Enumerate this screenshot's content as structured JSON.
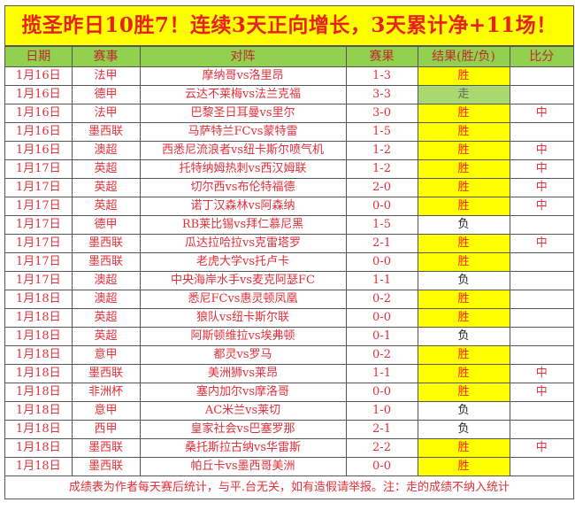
{
  "title": "揽圣昨日10胜7！连续3天正向增长，3天累计净+11场！",
  "headers": [
    "日期",
    "赛事",
    "对阵",
    "赛果",
    "结果(胜/负)",
    "比分"
  ],
  "rows": [
    [
      "1月16日",
      "法甲",
      "摩纳哥vs洛里昂",
      "1-3",
      "胜",
      ""
    ],
    [
      "1月16日",
      "德甲",
      "云达不莱梅vs法兰克福",
      "3-3",
      "走",
      ""
    ],
    [
      "1月16日",
      "法甲",
      "巴黎圣日耳曼vs里尔",
      "3-0",
      "胜",
      "中"
    ],
    [
      "1月16日",
      "墨西联",
      "马萨特兰FCvs蒙特雷",
      "1-5",
      "胜",
      ""
    ],
    [
      "1月16日",
      "澳超",
      "西悉尼流浪者vs纽卡斯尔喷气机",
      "1-2",
      "胜",
      "中"
    ],
    [
      "1月17日",
      "英超",
      "托特纳姆热刺vs西汉姆联",
      "1-2",
      "胜",
      "中"
    ],
    [
      "1月17日",
      "英超",
      "切尔西vs布伦特福德",
      "2-0",
      "胜",
      "中"
    ],
    [
      "1月17日",
      "英超",
      "诺丁汉森林vs阿森纳",
      "0-0",
      "胜",
      "中"
    ],
    [
      "1月17日",
      "德甲",
      "RB莱比锡vs拜仁慕尼黑",
      "1-5",
      "负",
      ""
    ],
    [
      "1月17日",
      "墨西联",
      "瓜达拉哈拉vs克雷塔罗",
      "2-1",
      "胜",
      "中"
    ],
    [
      "1月17日",
      "墨西联",
      "老虎大学vs托卢卡",
      "0-0",
      "胜",
      ""
    ],
    [
      "1月17日",
      "澳超",
      "中央海岸水手vs麦克阿瑟FC",
      "1-1",
      "负",
      ""
    ],
    [
      "1月18日",
      "澳超",
      "悉尼FCvs惠灵顿凤凰",
      "0-2",
      "胜",
      ""
    ],
    [
      "1月18日",
      "英超",
      "狼队vs纽卡斯尔联",
      "0-0",
      "胜",
      ""
    ],
    [
      "1月18日",
      "英超",
      "阿斯顿维拉vs埃弗顿",
      "0-1",
      "负",
      ""
    ],
    [
      "1月18日",
      "意甲",
      "都灵vs罗马",
      "0-2",
      "胜",
      ""
    ],
    [
      "1月18日",
      "墨西联",
      "美洲狮vs莱昂",
      "1-1",
      "胜",
      "中"
    ],
    [
      "1月18日",
      "非洲杯",
      "塞内加尔vs摩洛哥",
      "0-0",
      "胜",
      "中"
    ],
    [
      "1月18日",
      "意甲",
      "AC米兰vs莱切",
      "1-0",
      "负",
      ""
    ],
    [
      "1月18日",
      "西甲",
      "皇家社会vs巴塞罗那",
      "2-1",
      "负",
      ""
    ],
    [
      "1月18日",
      "墨西联",
      "桑托斯拉古纳vs华雷斯",
      "2-2",
      "胜",
      "中"
    ],
    [
      "1月18日",
      "墨西联",
      "帕丘卡vs墨西哥美洲",
      "0-0",
      "胜",
      ""
    ]
  ],
  "footer": "成绩表为作者每天赛后统计，与平.台无关，如有造假请举报。注：走的成绩不纳入统计",
  "colors": {
    "title_bg": "#ffff00",
    "header_bg": "#92d050",
    "win_bg": "#ffff00",
    "push_bg": "#a9d86e",
    "text": "#e0303a"
  }
}
